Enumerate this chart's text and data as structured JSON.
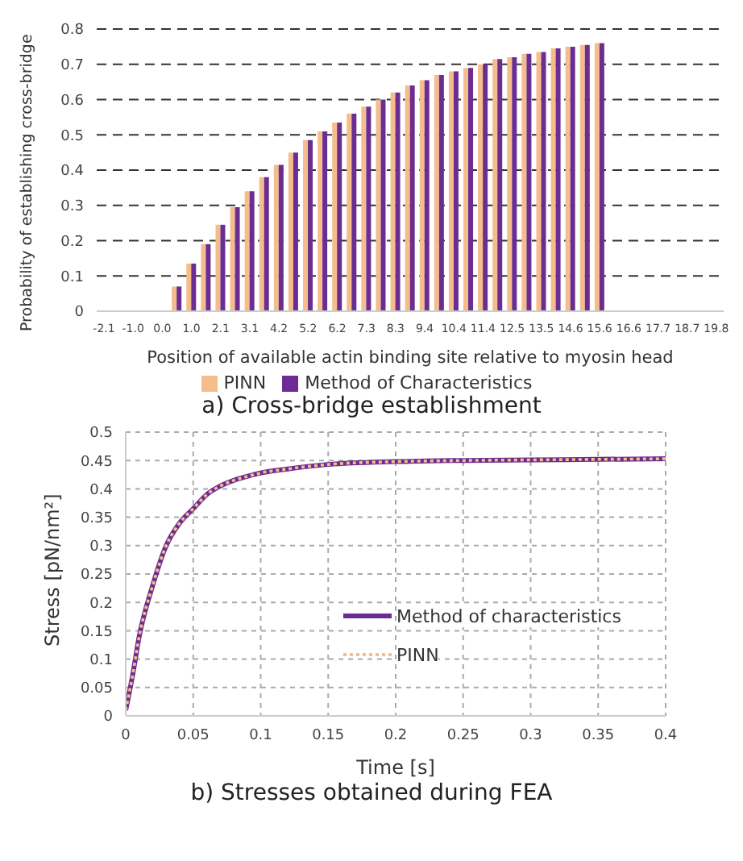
{
  "chart_data": [
    {
      "type": "bar",
      "title": "a) Cross-bridge establishment",
      "xlabel": "Position of available actin binding site relative to myosin head",
      "ylabel": "Probability of establishing cross-bridge",
      "categories": [
        "-2.1",
        null,
        "-1.0",
        null,
        "0.0",
        null,
        "1.0",
        null,
        "2.1",
        null,
        "3.1",
        null,
        "4.2",
        null,
        "5.2",
        null,
        "6.2",
        null,
        "7.3",
        null,
        "8.3",
        null,
        "9.4",
        null,
        "10.4",
        null,
        "11.4",
        null,
        "12.5",
        null,
        "13.5",
        null,
        "14.6",
        null,
        "15.6",
        null,
        "16.6",
        null,
        "17.7",
        null,
        "18.7",
        null,
        "19.8"
      ],
      "series": [
        {
          "name": "PINN",
          "color": "#f5bd8c",
          "values": [
            null,
            null,
            null,
            null,
            null,
            0.07,
            0.135,
            0.19,
            0.245,
            0.295,
            0.34,
            0.38,
            0.415,
            0.45,
            0.485,
            0.51,
            0.535,
            0.56,
            0.58,
            0.6,
            0.62,
            0.64,
            0.655,
            0.67,
            0.68,
            0.69,
            0.7,
            0.715,
            0.72,
            0.73,
            0.735,
            0.745,
            0.75,
            0.755,
            0.76,
            null,
            null,
            null,
            null,
            null,
            null,
            null,
            null
          ]
        },
        {
          "name": "Method of Characteristics",
          "color": "#6b2d91",
          "values": [
            null,
            null,
            null,
            null,
            null,
            0.07,
            0.135,
            0.19,
            0.245,
            0.295,
            0.34,
            0.38,
            0.415,
            0.45,
            0.485,
            0.51,
            0.535,
            0.56,
            0.58,
            0.6,
            0.62,
            0.64,
            0.655,
            0.67,
            0.68,
            0.69,
            0.7,
            0.715,
            0.72,
            0.73,
            0.735,
            0.745,
            0.75,
            0.755,
            0.76,
            null,
            null,
            null,
            null,
            null,
            null,
            null,
            null
          ]
        }
      ],
      "ylim": [
        0,
        0.8
      ],
      "yticks": [
        0,
        0.1,
        0.2,
        0.3,
        0.4,
        0.5,
        0.6,
        0.7,
        0.8
      ],
      "grid": "y",
      "legend": "bottom"
    },
    {
      "type": "line",
      "title": "b) Stresses obtained during FEA",
      "xlabel": "Time [s]",
      "ylabel": "Stress [pN/nm²]",
      "x": [
        0,
        0.005,
        0.01,
        0.02,
        0.03,
        0.04,
        0.05,
        0.06,
        0.07,
        0.08,
        0.09,
        0.1,
        0.12,
        0.15,
        0.2,
        0.25,
        0.3,
        0.35,
        0.4
      ],
      "series": [
        {
          "name": "Method of characteristics",
          "color": "#6b2d91",
          "line_style": "solid",
          "values": [
            0.01,
            0.07,
            0.14,
            0.23,
            0.3,
            0.34,
            0.365,
            0.39,
            0.405,
            0.415,
            0.422,
            0.428,
            0.435,
            0.443,
            0.448,
            0.45,
            0.451,
            0.452,
            0.453
          ]
        },
        {
          "name": "PINN",
          "color": "#f5bd8c",
          "line_style": "dotted",
          "values": [
            0.01,
            0.07,
            0.14,
            0.23,
            0.3,
            0.34,
            0.365,
            0.39,
            0.405,
            0.415,
            0.422,
            0.428,
            0.435,
            0.443,
            0.448,
            0.45,
            0.451,
            0.452,
            0.453
          ]
        }
      ],
      "xlim": [
        0,
        0.4
      ],
      "xticks": [
        0,
        0.05,
        0.1,
        0.15,
        0.2,
        0.25,
        0.3,
        0.35,
        0.4
      ],
      "ylim": [
        0,
        0.5
      ],
      "yticks": [
        0,
        0.05,
        0.1,
        0.15,
        0.2,
        0.25,
        0.3,
        0.35,
        0.4,
        0.45,
        0.5
      ],
      "grid": true,
      "legend": "bottom right"
    }
  ]
}
